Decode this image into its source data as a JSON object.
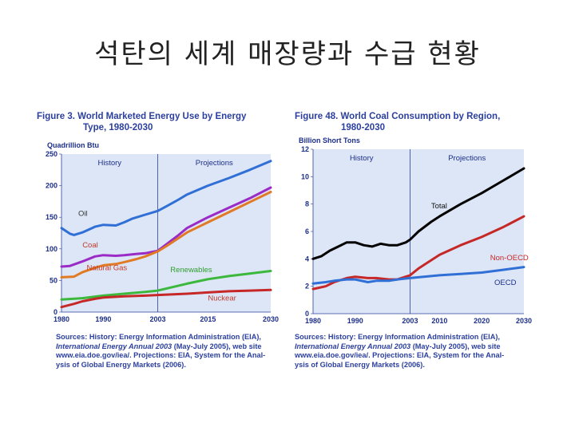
{
  "slide": {
    "title": "석탄의 세계 매장량과  수급 현황"
  },
  "chart_data": [
    {
      "type": "line",
      "title": "Figure 3. World Marketed Energy Use by Energy Type, 1980-2030",
      "title_line1": "Figure 3. World Marketed Energy Use by Energy",
      "title_line2": "Type, 1980-2030",
      "ylabel": "Quadrillion Btu",
      "xlim": [
        1980,
        2030
      ],
      "ylim": [
        0,
        250
      ],
      "xticks": [
        "1980",
        "1990",
        "2003",
        "2015",
        "2030"
      ],
      "xtick_values": [
        1980,
        1990,
        2003,
        2015,
        2030
      ],
      "yticks": [
        "0",
        "50",
        "100",
        "150",
        "200",
        "250"
      ],
      "ytick_values": [
        0,
        50,
        100,
        150,
        200,
        250
      ],
      "region_labels": {
        "history": "History",
        "projections": "Projections"
      },
      "divider_year": 2003,
      "series": [
        {
          "name": "Oil",
          "color": "#2f6fd6",
          "label_at": [
            1984,
            152
          ],
          "label_color": "#333333",
          "points": [
            [
              1980,
              133
            ],
            [
              1982,
              124
            ],
            [
              1983,
              122
            ],
            [
              1985,
              126
            ],
            [
              1988,
              135
            ],
            [
              1990,
              138
            ],
            [
              1993,
              137
            ],
            [
              1995,
              142
            ],
            [
              1997,
              148
            ],
            [
              2000,
              154
            ],
            [
              2003,
              160
            ],
            [
              2005,
              167
            ],
            [
              2008,
              178
            ],
            [
              2010,
              186
            ],
            [
              2015,
              200
            ],
            [
              2020,
              212
            ],
            [
              2025,
              225
            ],
            [
              2030,
              239
            ]
          ]
        },
        {
          "name": "Coal",
          "color": "#9b2bc6",
          "label_at": [
            1985,
            102
          ],
          "label_color": "#c0392b",
          "points": [
            [
              1980,
              72
            ],
            [
              1982,
              73
            ],
            [
              1985,
              80
            ],
            [
              1988,
              88
            ],
            [
              1990,
              90
            ],
            [
              1993,
              89
            ],
            [
              1995,
              90
            ],
            [
              1998,
              92
            ],
            [
              2000,
              93
            ],
            [
              2003,
              97
            ],
            [
              2005,
              107
            ],
            [
              2008,
              122
            ],
            [
              2010,
              133
            ],
            [
              2015,
              150
            ],
            [
              2020,
              165
            ],
            [
              2025,
              180
            ],
            [
              2030,
              197
            ]
          ]
        },
        {
          "name": "Natural Gas",
          "color": "#e07a25",
          "label_at": [
            1986,
            66
          ],
          "label_color": "#c0392b",
          "points": [
            [
              1980,
              55
            ],
            [
              1983,
              56
            ],
            [
              1985,
              63
            ],
            [
              1988,
              70
            ],
            [
              1990,
              74
            ],
            [
              1993,
              76
            ],
            [
              1995,
              79
            ],
            [
              1998,
              84
            ],
            [
              2000,
              88
            ],
            [
              2003,
              96
            ],
            [
              2005,
              104
            ],
            [
              2008,
              117
            ],
            [
              2010,
              126
            ],
            [
              2015,
              142
            ],
            [
              2020,
              158
            ],
            [
              2025,
              174
            ],
            [
              2030,
              190
            ]
          ]
        },
        {
          "name": "Renewables",
          "color": "#3cb83c",
          "label_at": [
            2006,
            63
          ],
          "label_color": "#2e9e2e",
          "points": [
            [
              1980,
              20
            ],
            [
              1985,
              22
            ],
            [
              1990,
              26
            ],
            [
              1995,
              29
            ],
            [
              2000,
              32
            ],
            [
              2003,
              34
            ],
            [
              2010,
              45
            ],
            [
              2015,
              52
            ],
            [
              2020,
              57
            ],
            [
              2025,
              61
            ],
            [
              2030,
              65
            ]
          ]
        },
        {
          "name": "Nuckear",
          "color": "#c62828",
          "label_at": [
            2015,
            18
          ],
          "label_color": "#c0392b",
          "points": [
            [
              1980,
              8
            ],
            [
              1983,
              13
            ],
            [
              1985,
              17
            ],
            [
              1988,
              21
            ],
            [
              1990,
              23
            ],
            [
              1995,
              25
            ],
            [
              2000,
              26
            ],
            [
              2003,
              27
            ],
            [
              2010,
              29
            ],
            [
              2015,
              31
            ],
            [
              2020,
              33
            ],
            [
              2025,
              34
            ],
            [
              2030,
              35
            ]
          ]
        }
      ],
      "source": {
        "line1": "Sources: History: Energy Information Administration (EIA),",
        "line2_italic": "International Energy Annual 2003",
        "line2_rest": " (May-July 2005), web site",
        "line3": "www.eia.doe.gov/iea/. Projections: EIA, System for the Anal-",
        "line4": "ysis of Global Energy Markets (2006)."
      }
    },
    {
      "type": "line",
      "title": "Figure 48. World Coal Consumption by Region, 1980-2030",
      "title_line1": "Figure 48. World Coal Consumption by Region,",
      "title_line2": "1980-2030",
      "ylabel": "Billion Short Tons",
      "xlim": [
        1980,
        2030
      ],
      "ylim": [
        0,
        12
      ],
      "xticks": [
        "1980",
        "1990",
        "2003",
        "2010",
        "2020",
        "2030"
      ],
      "xtick_values": [
        1980,
        1990,
        2003,
        2010,
        2020,
        2030
      ],
      "yticks": [
        "0",
        "2",
        "4",
        "6",
        "8",
        "10",
        "12"
      ],
      "ytick_values": [
        0,
        2,
        4,
        6,
        8,
        10,
        12
      ],
      "region_labels": {
        "history": "History",
        "projections": "Projections"
      },
      "divider_year": 2003,
      "series": [
        {
          "name": "Total",
          "color": "#000000",
          "label_at": [
            2008,
            7.7
          ],
          "label_color": "#111111",
          "points": [
            [
              1980,
              4.0
            ],
            [
              1982,
              4.2
            ],
            [
              1984,
              4.6
            ],
            [
              1986,
              4.9
            ],
            [
              1988,
              5.2
            ],
            [
              1990,
              5.2
            ],
            [
              1992,
              5.0
            ],
            [
              1994,
              4.9
            ],
            [
              1996,
              5.1
            ],
            [
              1998,
              5.0
            ],
            [
              2000,
              5.0
            ],
            [
              2002,
              5.2
            ],
            [
              2003,
              5.4
            ],
            [
              2005,
              6.0
            ],
            [
              2008,
              6.7
            ],
            [
              2010,
              7.1
            ],
            [
              2015,
              8.0
            ],
            [
              2020,
              8.8
            ],
            [
              2025,
              9.7
            ],
            [
              2030,
              10.6
            ]
          ]
        },
        {
          "name": "Non-OECD",
          "color": "#c62828",
          "label_at": [
            2022,
            3.9
          ],
          "label_color": "#c62828",
          "points": [
            [
              1980,
              1.8
            ],
            [
              1983,
              2.0
            ],
            [
              1985,
              2.3
            ],
            [
              1988,
              2.6
            ],
            [
              1990,
              2.7
            ],
            [
              1993,
              2.6
            ],
            [
              1995,
              2.6
            ],
            [
              1998,
              2.5
            ],
            [
              2000,
              2.5
            ],
            [
              2003,
              2.8
            ],
            [
              2005,
              3.3
            ],
            [
              2008,
              3.9
            ],
            [
              2010,
              4.3
            ],
            [
              2015,
              5.0
            ],
            [
              2020,
              5.6
            ],
            [
              2025,
              6.3
            ],
            [
              2030,
              7.1
            ]
          ]
        },
        {
          "name": "OECD",
          "color": "#2f6fd6",
          "label_at": [
            2023,
            2.1
          ],
          "label_color": "#1d2f8a",
          "points": [
            [
              1980,
              2.2
            ],
            [
              1983,
              2.3
            ],
            [
              1985,
              2.4
            ],
            [
              1988,
              2.5
            ],
            [
              1990,
              2.5
            ],
            [
              1993,
              2.3
            ],
            [
              1995,
              2.4
            ],
            [
              1998,
              2.4
            ],
            [
              2000,
              2.5
            ],
            [
              2003,
              2.6
            ],
            [
              2010,
              2.8
            ],
            [
              2015,
              2.9
            ],
            [
              2020,
              3.0
            ],
            [
              2025,
              3.2
            ],
            [
              2030,
              3.4
            ]
          ]
        }
      ],
      "source": {
        "line1": "Sources: History: Energy Information Administration (EIA),",
        "line2_italic": "International Energy Annual  2003",
        "line2_rest": " (May-July 2005), web site",
        "line3": "www.eia.doe.gov/iea/. Projections: EIA, System for the Anal-",
        "line4": "ysis of Global Energy Markets (2006)."
      }
    }
  ]
}
